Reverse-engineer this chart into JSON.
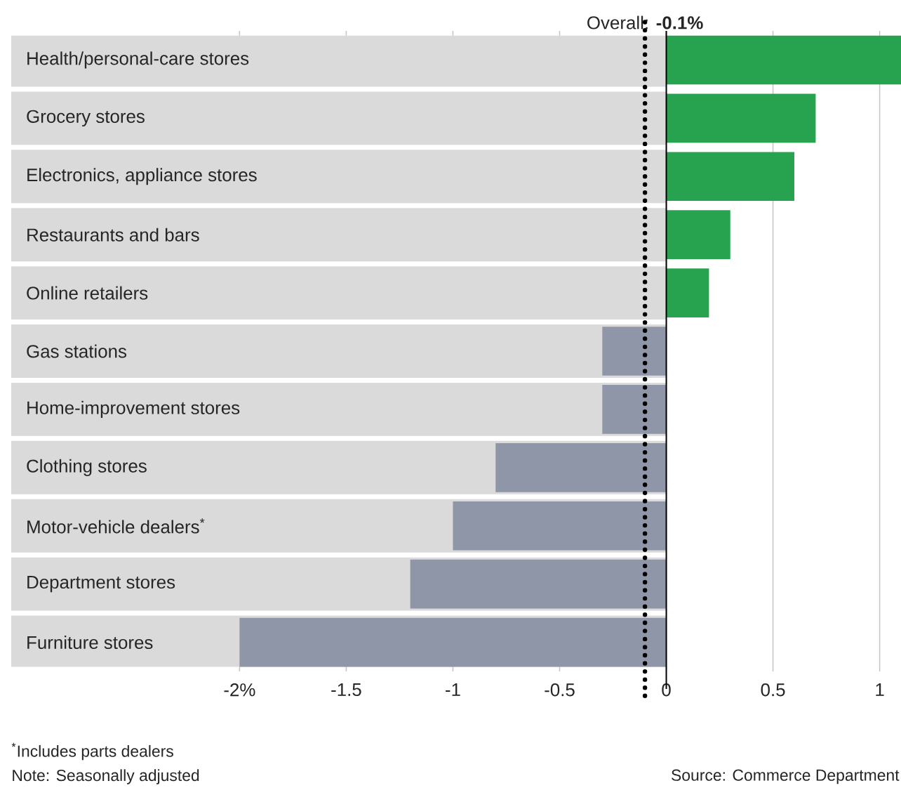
{
  "chart_data": {
    "type": "bar",
    "orientation": "horizontal",
    "categories": [
      "Health/personal-care stores",
      "Grocery stores",
      "Electronics, appliance stores",
      "Restaurants and bars",
      "Online retailers",
      "Gas stations",
      "Home-improvement stores",
      "Clothing stores",
      "Motor-vehicle dealers$^{*}$",
      "Department stores",
      "Furniture stores"
    ],
    "values": [
      1.1,
      0.7,
      0.6,
      0.3,
      0.2,
      -0.3,
      -0.3,
      -0.8,
      -1.0,
      -1.2,
      -2.0
    ],
    "colors": [
      "#27a34f",
      "#27a34f",
      "#27a34f",
      "#27a34f",
      "#27a34f",
      "#8f96a8",
      "#8f96a8",
      "#8f96a8",
      "#8f96a8",
      "#8f96a8",
      "#8f96a8"
    ],
    "xlim": [
      -3.07,
      1.1
    ],
    "xticks": [
      {
        "value": -2,
        "label": "-2%"
      },
      -1.5,
      -1,
      -0.5,
      0,
      0.5,
      1
    ],
    "grid": "x",
    "bands": [
      {
        "axis": "x",
        "from": -3.07,
        "to": 0,
        "color": "#dadada"
      }
    ],
    "ref_lines": [
      {
        "axis": "x",
        "value": -0.1,
        "label": "Overall: **-0.1%**",
        "line_style": "dotted",
        "color": "#000000"
      }
    ],
    "annotations": [
      "$^{*}$Includes parts dealers",
      "Note: Seasonally adjusted",
      "Source: Commerce Department"
    ]
  }
}
